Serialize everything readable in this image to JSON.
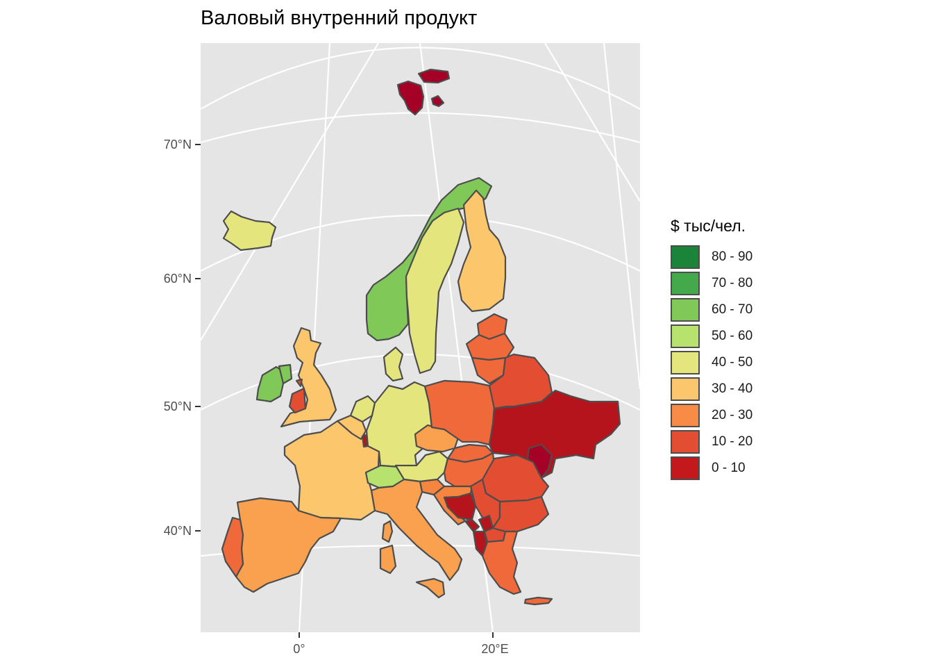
{
  "title": "Валовый внутренний продукт",
  "axes": {
    "y_ticks": [
      "70°N",
      "60°N",
      "50°N",
      "40°N"
    ],
    "x_ticks": [
      "0°",
      "20°E"
    ]
  },
  "legend": {
    "title": "$ тыс/чел.",
    "items": [
      {
        "label": "80 - 90",
        "color": "#1a8539"
      },
      {
        "label": "70 - 80",
        "color": "#44a94b"
      },
      {
        "label": "60 - 70",
        "color": "#80c857"
      },
      {
        "label": "50 - 60",
        "color": "#b7e26e"
      },
      {
        "label": "40 - 50",
        "color": "#e5e57e"
      },
      {
        "label": "30 - 40",
        "color": "#fcc76c"
      },
      {
        "label": "20 - 30",
        "color": "#f88c47"
      },
      {
        "label": "10 - 20",
        "color": "#e34d31"
      },
      {
        "label": "0 - 10",
        "color": "#c3191d"
      }
    ]
  },
  "colors": {
    "panel": "#e5e5e5",
    "graticule": "#ffffff",
    "border": "#4d4d4d",
    "dark_red": "#a50026",
    "deep_red": "#b5141d",
    "red": "#e34d31",
    "red_orange": "#f0693a",
    "orange": "#f6853f",
    "light_orange": "#f9a14e",
    "peach": "#fcc76c",
    "yellow": "#e5e57e",
    "light_green": "#b7e26e",
    "green": "#80c857"
  },
  "countries": [
    {
      "name": "Svalbard",
      "color": "dark_red"
    },
    {
      "name": "Svalbard islet",
      "color": "dark_red"
    },
    {
      "name": "Svalbard small",
      "color": "dark_red"
    },
    {
      "name": "Iceland",
      "color": "yellow"
    },
    {
      "name": "Norway",
      "color": "green"
    },
    {
      "name": "Sweden",
      "color": "yellow"
    },
    {
      "name": "Finland",
      "color": "peach"
    },
    {
      "name": "Denmark",
      "color": "yellow"
    },
    {
      "name": "Ireland",
      "color": "green"
    },
    {
      "name": "Northern Ireland",
      "color": "green"
    },
    {
      "name": "United Kingdom",
      "color": "peach"
    },
    {
      "name": "Isle of Man",
      "color": "red"
    },
    {
      "name": "Wales",
      "color": "red"
    },
    {
      "name": "France",
      "color": "peach"
    },
    {
      "name": "Belgium",
      "color": "peach"
    },
    {
      "name": "Netherlands",
      "color": "yellow"
    },
    {
      "name": "Luxembourg",
      "color": "deep_red"
    },
    {
      "name": "Germany",
      "color": "yellow"
    },
    {
      "name": "Switzerland",
      "color": "light_green"
    },
    {
      "name": "Austria",
      "color": "yellow"
    },
    {
      "name": "Czechia",
      "color": "light_orange"
    },
    {
      "name": "Poland",
      "color": "red_orange"
    },
    {
      "name": "Estonia",
      "color": "red_orange"
    },
    {
      "name": "Latvia",
      "color": "red_orange"
    },
    {
      "name": "Lithuania",
      "color": "red_orange"
    },
    {
      "name": "Belarus",
      "color": "red"
    },
    {
      "name": "Ukraine",
      "color": "deep_red"
    },
    {
      "name": "Moldova",
      "color": "dark_red"
    },
    {
      "name": "Slovakia",
      "color": "red_orange"
    },
    {
      "name": "Hungary",
      "color": "red_orange"
    },
    {
      "name": "Romania",
      "color": "red"
    },
    {
      "name": "Slovenia",
      "color": "orange"
    },
    {
      "name": "Croatia",
      "color": "orange"
    },
    {
      "name": "Bosnia",
      "color": "deep_red"
    },
    {
      "name": "Serbia",
      "color": "red"
    },
    {
      "name": "Montenegro",
      "color": "deep_red"
    },
    {
      "name": "Kosovo",
      "color": "deep_red"
    },
    {
      "name": "Albania",
      "color": "deep_red"
    },
    {
      "name": "North Macedonia",
      "color": "red"
    },
    {
      "name": "Bulgaria",
      "color": "red"
    },
    {
      "name": "Greece",
      "color": "red_orange"
    },
    {
      "name": "Crete",
      "color": "red_orange"
    },
    {
      "name": "Italy",
      "color": "light_orange"
    },
    {
      "name": "Sicily",
      "color": "light_orange"
    },
    {
      "name": "Corsica",
      "color": "light_orange"
    },
    {
      "name": "Sardinia",
      "color": "light_orange"
    },
    {
      "name": "Spain",
      "color": "light_orange"
    },
    {
      "name": "Portugal",
      "color": "red_orange"
    }
  ]
}
